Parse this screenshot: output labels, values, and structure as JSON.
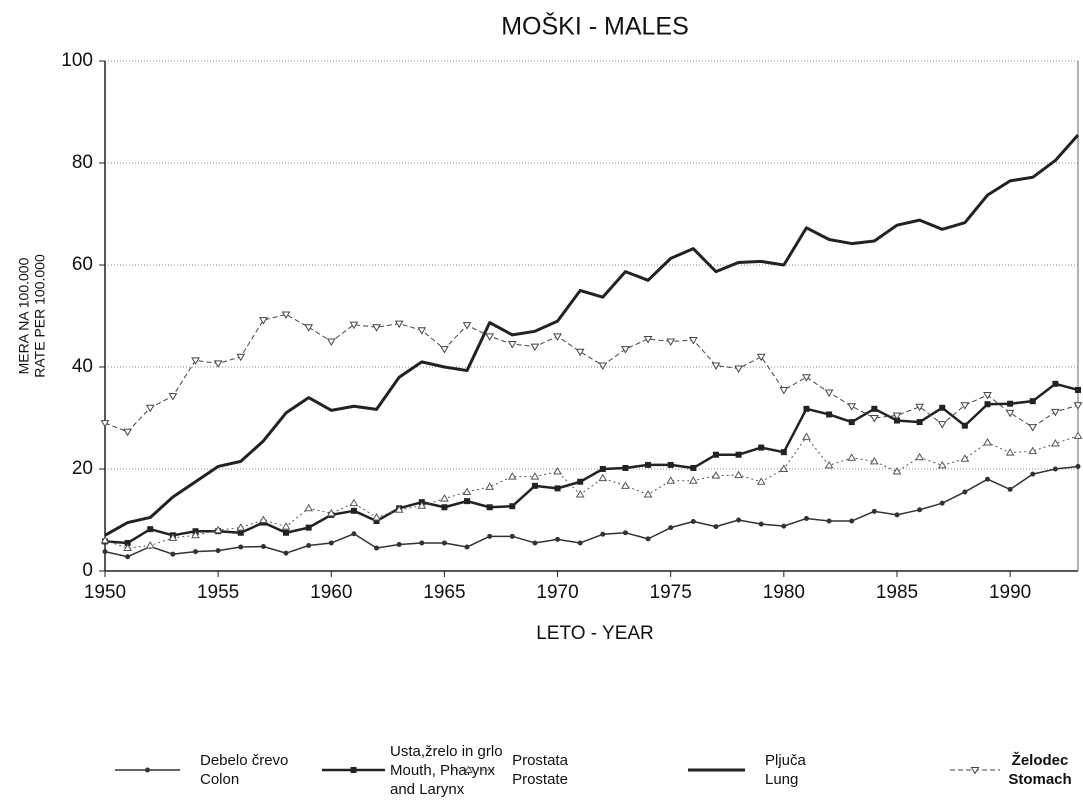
{
  "chart_data": {
    "type": "line",
    "title": "MOŠKI - MALES",
    "x_label": "LETO - YEAR",
    "y_label": [
      "MERA NA 100.000",
      "RATE PER 100.000"
    ],
    "x": [
      1950,
      1951,
      1952,
      1953,
      1954,
      1955,
      1956,
      1957,
      1958,
      1959,
      1960,
      1961,
      1962,
      1963,
      1964,
      1965,
      1966,
      1967,
      1968,
      1969,
      1970,
      1971,
      1972,
      1973,
      1974,
      1975,
      1976,
      1977,
      1978,
      1979,
      1980,
      1981,
      1982,
      1983,
      1984,
      1985,
      1986,
      1987,
      1988,
      1989,
      1990,
      1991,
      1992,
      1993
    ],
    "xlim": [
      1950,
      1993
    ],
    "xticks": [
      1950,
      1955,
      1960,
      1965,
      1970,
      1975,
      1980,
      1985,
      1990
    ],
    "ylim": [
      0,
      100
    ],
    "yticks": [
      0,
      20,
      40,
      60,
      80,
      100
    ],
    "grid": true,
    "series": [
      {
        "name": [
          "Debelo črevo",
          "Colon"
        ],
        "color": "#333333",
        "line_width": 1.5,
        "dash": "none",
        "marker": "circle",
        "values": [
          3.8,
          2.8,
          4.8,
          3.3,
          3.8,
          4,
          4.7,
          4.8,
          3.5,
          5,
          5.5,
          7.3,
          4.5,
          5.2,
          5.5,
          5.5,
          4.7,
          6.8,
          6.8,
          5.5,
          6.2,
          5.5,
          7.2,
          7.5,
          6.3,
          8.5,
          9.7,
          8.7,
          10,
          9.2,
          8.8,
          10.3,
          9.8,
          9.8,
          11.7,
          11,
          12,
          13.3,
          15.5,
          18,
          16,
          19,
          20,
          20.5
        ]
      },
      {
        "name": [
          "Usta,žrelo in grlo",
          "Mouth, Pharynx",
          "and Larynx"
        ],
        "color": "#222222",
        "line_width": 2.5,
        "dash": "none",
        "marker": "square",
        "values": [
          5.8,
          5.5,
          8.2,
          7,
          7.8,
          7.8,
          7.5,
          9.5,
          7.5,
          8.5,
          11,
          11.8,
          9.8,
          12.3,
          13.5,
          12.5,
          13.7,
          12.5,
          12.7,
          16.7,
          16.2,
          17.5,
          20,
          20.2,
          20.8,
          20.8,
          20.2,
          22.8,
          22.8,
          24.2,
          23.3,
          31.8,
          30.7,
          29.2,
          31.8,
          29.5,
          29.2,
          32,
          28.5,
          32.7,
          32.8,
          33.3,
          36.7,
          35.5
        ]
      },
      {
        "name": [
          "Prostata",
          "Prostate"
        ],
        "color": "#555555",
        "line_width": 1,
        "dash": "2,3",
        "marker": "triangle-up",
        "values": [
          6,
          4.5,
          5,
          6.5,
          7,
          8,
          8.5,
          10,
          8.7,
          12.3,
          11.3,
          13.3,
          10.5,
          12,
          12.8,
          14.2,
          15.5,
          16.5,
          18.5,
          18.5,
          19.5,
          15,
          18.2,
          16.7,
          15,
          17.7,
          17.7,
          18.7,
          18.8,
          17.5,
          20,
          26.3,
          20.7,
          22.2,
          21.5,
          19.5,
          22.3,
          20.7,
          22,
          25.2,
          23.2,
          23.5,
          25,
          26.5
        ]
      },
      {
        "name": [
          "Pljuča",
          "Lung"
        ],
        "color": "#222222",
        "line_width": 3,
        "dash": "none",
        "marker": "none",
        "values": [
          7,
          9.5,
          10.5,
          14.5,
          17.5,
          20.5,
          21.5,
          25.5,
          31,
          34,
          31.5,
          32.3,
          31.7,
          38,
          41,
          40,
          39.3,
          48.7,
          46.3,
          47,
          49,
          55,
          53.7,
          58.7,
          57,
          61.3,
          63.2,
          58.7,
          60.5,
          60.7,
          60,
          67.3,
          65,
          64.2,
          64.7,
          67.8,
          68.8,
          67,
          68.3,
          73.7,
          76.5,
          77.2,
          80.5,
          85.5
        ]
      },
      {
        "name": [
          "Želodec",
          "Stomach"
        ],
        "color": "#444444",
        "line_width": 1,
        "dash": "5,3",
        "marker": "triangle-down",
        "values": [
          29,
          27.3,
          32,
          34.3,
          41.3,
          40.7,
          42,
          49.2,
          50.3,
          47.8,
          45,
          48.3,
          47.8,
          48.5,
          47.2,
          43.5,
          48.2,
          46,
          44.5,
          44,
          46,
          43,
          40.3,
          43.5,
          45.5,
          45,
          45.3,
          40.3,
          39.7,
          42,
          35.5,
          38,
          35,
          32.3,
          30,
          30.5,
          32.2,
          28.8,
          32.5,
          34.5,
          31,
          28.2,
          31.2,
          32.5
        ]
      }
    ]
  }
}
